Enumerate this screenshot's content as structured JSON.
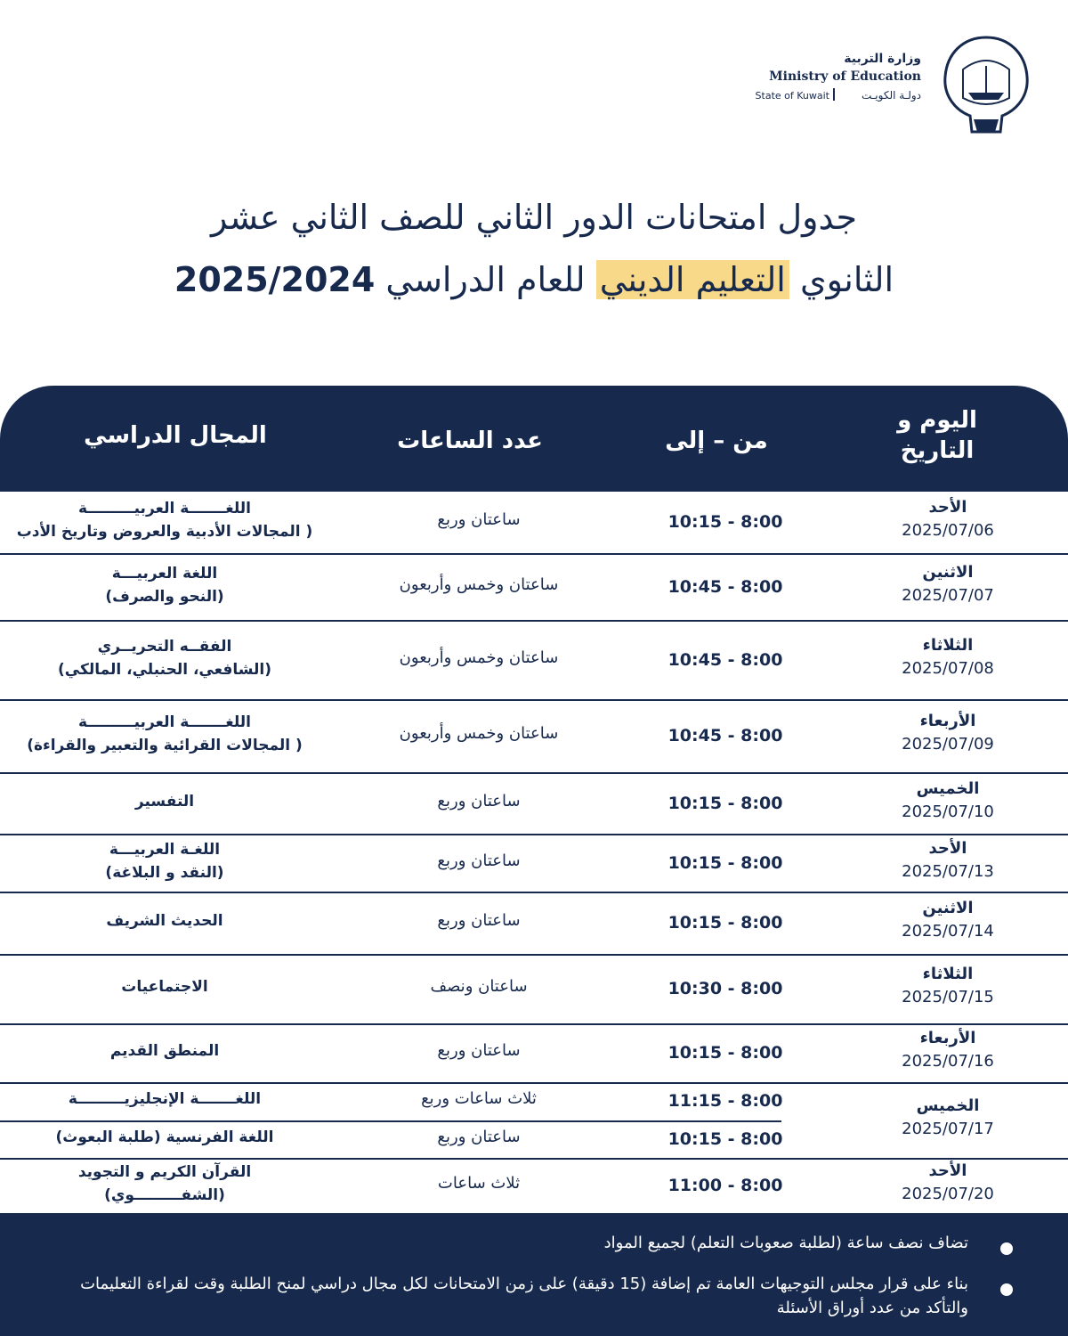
{
  "header": {
    "ministry_ar": "وزارة التربية",
    "ministry_en": "Ministry of Education",
    "state_en": "State of Kuwait",
    "state_ar": "دولـة الكويـت"
  },
  "title": {
    "line1": "جدول امتحانات الدور الثاني للصف الثاني عشر",
    "line2_start": "الثانوي",
    "line2_highlight": "التعليم الديني",
    "line2_end": "للعام الدراسي",
    "year": "2025/2024"
  },
  "table": {
    "headers": [
      "اليوم و التاريخ",
      "من – إلى",
      "عدد الساعات",
      "المجال الدراسي"
    ],
    "rows": [
      {
        "day": "الأحد",
        "date": "2025/07/06",
        "sessions": [
          {
            "time": "10:15 - 8:00",
            "hours": "ساعتان وربع",
            "subject": [
              "اللغـــــــة العربيـــــــــة",
              "( المجالات الأدبية والعروض وتاريخ الأدب"
            ]
          }
        ]
      },
      {
        "day": "الاثنين",
        "date": "2025/07/07",
        "sessions": [
          {
            "time": "10:45 - 8:00",
            "hours": "ساعتان وخمس وأربعون",
            "subject": [
              "اللغة العربيـــة",
              "(النحو والصرف)"
            ]
          }
        ]
      },
      {
        "day": "الثلاثاء",
        "date": "2025/07/08",
        "sessions": [
          {
            "time": "10:45 - 8:00",
            "hours": "ساعتان وخمس وأربعون",
            "subject": [
              "الفقــه التحريــري",
              "(الشافعي، الحنبلي، المالكي)"
            ]
          }
        ]
      },
      {
        "day": "الأربعاء",
        "date": "2025/07/09",
        "sessions": [
          {
            "time": "10:45 - 8:00",
            "hours": "ساعتان وخمس وأربعون",
            "subject": [
              "اللغـــــــة العربيـــــــــة",
              "( المجالات القرائية والتعبير والقراءة)"
            ]
          }
        ]
      },
      {
        "day": "الخميس",
        "date": "2025/07/10",
        "sessions": [
          {
            "time": "10:15 - 8:00",
            "hours": "ساعتان وربع",
            "subject": [
              "التفسير"
            ]
          }
        ]
      },
      {
        "day": "الأحد",
        "date": "2025/07/13",
        "sessions": [
          {
            "time": "10:15 - 8:00",
            "hours": "ساعتان وربع",
            "subject": [
              "اللغـة العربيـــة",
              "(النقد و البلاغة)"
            ]
          }
        ]
      },
      {
        "day": "الاثنين",
        "date": "2025/07/14",
        "sessions": [
          {
            "time": "10:15 - 8:00",
            "hours": "ساعتان وربع",
            "subject": [
              "الحديث الشريف"
            ]
          }
        ]
      },
      {
        "day": "الثلاثاء",
        "date": "2025/07/15",
        "sessions": [
          {
            "time": "10:30 - 8:00",
            "hours": "ساعتان ونصف",
            "subject": [
              "الاجتماعيات"
            ]
          }
        ]
      },
      {
        "day": "الأربعاء",
        "date": "2025/07/16",
        "sessions": [
          {
            "time": "10:15 - 8:00",
            "hours": "ساعتان وربع",
            "subject": [
              "المنطق القديم"
            ]
          }
        ]
      },
      {
        "day": "الخميس",
        "date": "2025/07/17",
        "sessions": [
          {
            "time": "11:15 - 8:00",
            "hours": "ثلاث ساعات وربع",
            "subject": [
              "اللغـــــــة الإنجليزيـــــــــة"
            ]
          },
          {
            "time": "10:15 - 8:00",
            "hours": "ساعتان وربع",
            "subject": [
              "اللغة الفرنسية (طلبة البعوث)"
            ]
          }
        ]
      },
      {
        "day": "الأحد",
        "date": "2025/07/20",
        "sessions": [
          {
            "time": "11:00 - 8:00",
            "hours": "ثلاث ساعات",
            "subject": [
              "القرآن الكريم و التجويد",
              "(الشفـــــــــوي)"
            ]
          }
        ]
      }
    ]
  },
  "notes": [
    "تضاف نصف ساعة (لطلبة صعوبات التعلم) لجميع المواد",
    "بناء على قرار مجلس التوجيهات العامة تم إضافة (15 دقيقة) على زمن الامتحانات لكل مجال دراسي لمنح الطلبة وقت لقراءة التعليمات والتأكد من عدد أوراق الأسئلة"
  ]
}
